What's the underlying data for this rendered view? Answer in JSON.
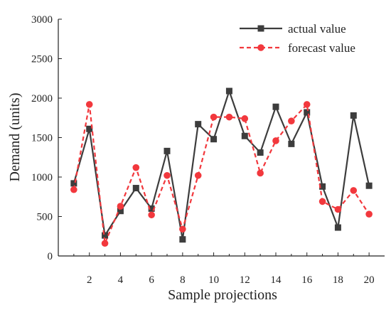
{
  "chart_data": {
    "type": "line",
    "title": "",
    "xlabel": "Sample projections",
    "ylabel": "Demand (units)",
    "x": [
      1,
      2,
      3,
      4,
      5,
      6,
      7,
      8,
      9,
      10,
      11,
      12,
      13,
      14,
      15,
      16,
      17,
      18,
      19,
      20
    ],
    "x_ticks": [
      2,
      4,
      6,
      8,
      10,
      12,
      14,
      16,
      18,
      20
    ],
    "xlim": [
      0,
      21
    ],
    "ylim": [
      0,
      3000
    ],
    "y_ticks": [
      0,
      500,
      1000,
      1500,
      2000,
      2500,
      3000
    ],
    "grid": false,
    "legend_position": "top-right",
    "series": [
      {
        "name": "actual value",
        "color": "#3d3d3d",
        "line_style": "solid",
        "marker": "square",
        "values": [
          920,
          1610,
          260,
          570,
          860,
          600,
          1330,
          210,
          1670,
          1480,
          2090,
          1520,
          1310,
          1890,
          1420,
          1820,
          880,
          360,
          1780,
          890
        ]
      },
      {
        "name": "forecast value",
        "color": "#f2383d",
        "line_style": "dashed",
        "marker": "circle",
        "values": [
          840,
          1920,
          160,
          630,
          1120,
          520,
          1020,
          340,
          1020,
          1760,
          1760,
          1740,
          1050,
          1460,
          1710,
          1920,
          690,
          590,
          830,
          530
        ]
      }
    ]
  }
}
